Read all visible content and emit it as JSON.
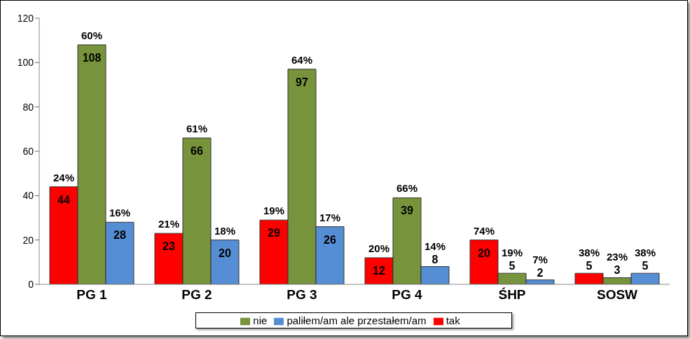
{
  "chart_data": {
    "type": "bar",
    "categories": [
      "PG 1",
      "PG 2",
      "PG 3",
      "PG 4",
      "ŚHP",
      "SOSW"
    ],
    "series": [
      {
        "name": "tak",
        "color": "#ff0000",
        "values": [
          44,
          23,
          29,
          12,
          20,
          5
        ],
        "percent_labels": [
          "24%",
          "21%",
          "19%",
          "20%",
          "74%",
          "38%"
        ]
      },
      {
        "name": "nie",
        "color": "#77933c",
        "values": [
          108,
          66,
          97,
          39,
          5,
          3
        ],
        "percent_labels": [
          "60%",
          "61%",
          "64%",
          "66%",
          "19%",
          "23%"
        ]
      },
      {
        "name": "paliłem/am ale przestałem/am",
        "color": "#558ed5",
        "values": [
          28,
          20,
          26,
          8,
          2,
          5
        ],
        "percent_labels": [
          "16%",
          "18%",
          "17%",
          "14%",
          "7%",
          "38%"
        ]
      }
    ],
    "ylim": [
      0,
      120
    ],
    "yticks": [
      0,
      20,
      40,
      60,
      80,
      100,
      120
    ],
    "grid": false,
    "legend": "bottom",
    "data_labels": true
  }
}
